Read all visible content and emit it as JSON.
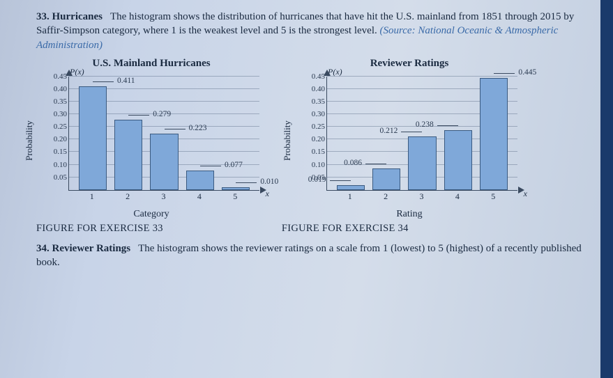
{
  "p33": {
    "number": "33.",
    "title": "Hurricanes",
    "text_before_source": "The histogram shows the distribution of hurricanes that have hit the U.S. mainland from 1851 through 2015 by Saffir-Simpson category, where 1 is the weakest level and 5 is the strongest level.",
    "source_text": "(Source: National Oceanic & Atmospheric Administration)"
  },
  "p34": {
    "number": "34.",
    "title": "Reviewer Ratings",
    "text": "The histogram shows the reviewer ratings on a scale from 1 (lowest) to 5 (highest) of a recently published book."
  },
  "chart1": {
    "title": "U.S. Mainland Hurricanes",
    "ylabel": "Probability",
    "xlabel": "Category",
    "pxlabel": "P(x)",
    "xvar": "x",
    "ylim": [
      0,
      0.45
    ],
    "ytick_step": 0.05,
    "categories": [
      "1",
      "2",
      "3",
      "4",
      "5"
    ],
    "values": [
      0.411,
      0.279,
      0.223,
      0.077,
      0.01
    ],
    "value_labels": [
      "0.411",
      "0.279",
      "0.223",
      "0.077",
      "0.010"
    ],
    "bar_color": "#7fa8d9",
    "border_color": "#3a5a80",
    "label_line_side": [
      "right",
      "right",
      "right",
      "right",
      "right"
    ]
  },
  "chart2": {
    "title": "Reviewer Ratings",
    "ylabel": "Probability",
    "xlabel": "Rating",
    "pxlabel": "P(x)",
    "xvar": "x",
    "ylim": [
      0,
      0.45
    ],
    "ytick_step": 0.05,
    "categories": [
      "1",
      "2",
      "3",
      "4",
      "5"
    ],
    "values": [
      0.019,
      0.086,
      0.212,
      0.238,
      0.445
    ],
    "value_labels": [
      "0.019",
      "0.086",
      "0.212",
      "0.238",
      "0.445"
    ],
    "bar_color": "#7fa8d9",
    "border_color": "#3a5a80",
    "label_line_side": [
      "left",
      "left",
      "left",
      "left",
      "right"
    ]
  },
  "captions": {
    "fig33": "FIGURE FOR EXERCISE 33",
    "fig34": "FIGURE FOR EXERCISE 34"
  }
}
